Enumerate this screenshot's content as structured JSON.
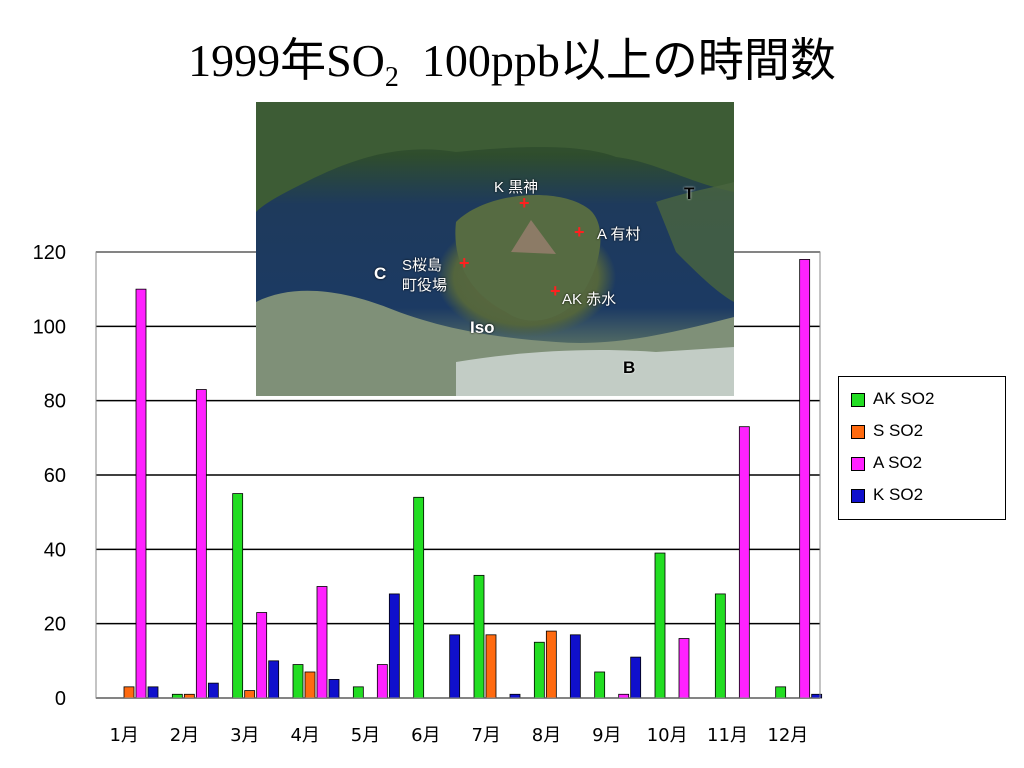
{
  "title": {
    "main": "1999年SO",
    "sub": "2",
    "rest": "100ppb以上の時間数"
  },
  "colors": {
    "AK": "#22dd22",
    "S": "#ff6a10",
    "A": "#ff22ff",
    "K": "#1010cc",
    "grid": "#000000"
  },
  "map": {
    "labels": {
      "k": "K 黒神",
      "a": "A 有村",
      "s_line1": "S桜島",
      "s_line2": "町役場",
      "ak": "AK 赤水",
      "c": "C",
      "t": "T",
      "iso": "Iso",
      "b": "B"
    }
  },
  "chart_data": {
    "type": "bar",
    "categories": [
      "1月",
      "2月",
      "3月",
      "4月",
      "5月",
      "6月",
      "7月",
      "8月",
      "9月",
      "10月",
      "11月",
      "12月"
    ],
    "series": [
      {
        "name": "AK SO2",
        "color": "#22dd22",
        "values": [
          0,
          1,
          55,
          9,
          3,
          54,
          33,
          15,
          7,
          39,
          28,
          3
        ]
      },
      {
        "name": "S SO2",
        "color": "#ff6a10",
        "values": [
          3,
          1,
          2,
          7,
          0,
          0,
          17,
          18,
          0,
          0,
          0,
          0
        ]
      },
      {
        "name": "A SO2",
        "color": "#ff22ff",
        "values": [
          110,
          83,
          23,
          30,
          9,
          0,
          0,
          0,
          1,
          16,
          73,
          118
        ]
      },
      {
        "name": "K SO2",
        "color": "#1010cc",
        "values": [
          3,
          4,
          10,
          5,
          28,
          17,
          1,
          17,
          11,
          0,
          0,
          1
        ]
      }
    ],
    "ylim": [
      0,
      120
    ],
    "yticks": [
      "0",
      "20",
      "40",
      "60",
      "80",
      "100",
      "120"
    ],
    "grid": true,
    "legend_position": "right"
  }
}
